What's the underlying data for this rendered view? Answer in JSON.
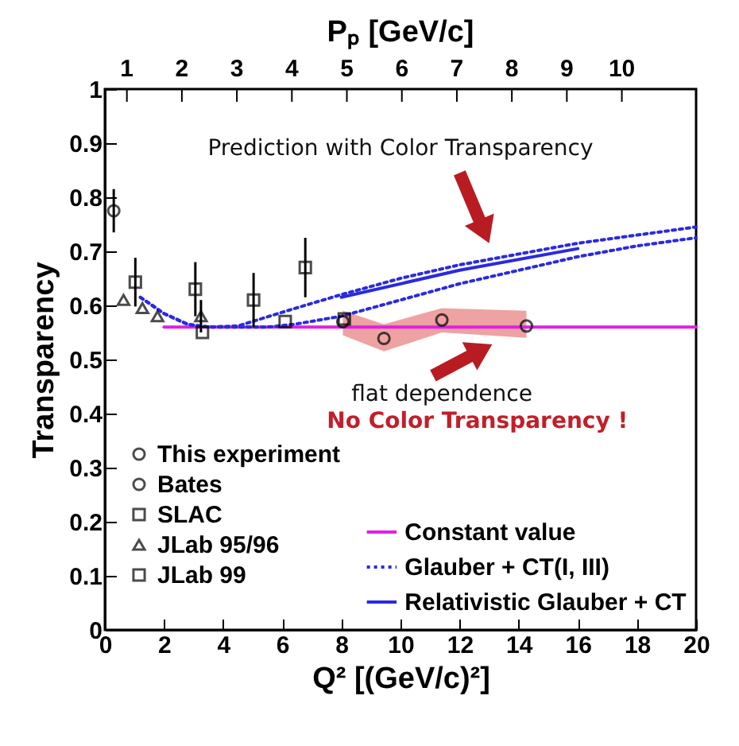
{
  "chart_data": {
    "type": "scatter",
    "xlabel": "Q² [(GeV/c)²]",
    "ylabel": "Transparency",
    "x2label": "Pₚ [GeV/c]",
    "xlim": [
      0,
      20
    ],
    "xticks": [
      0,
      2,
      4,
      6,
      8,
      10,
      12,
      14,
      16,
      18,
      20
    ],
    "ylim": [
      0,
      1
    ],
    "yticks": [
      0,
      0.1,
      0.2,
      0.3,
      0.4,
      0.5,
      0.6,
      0.7,
      0.8,
      0.9,
      1
    ],
    "x2lim": [
      0.6,
      11.35
    ],
    "x2ticks": [
      1,
      2,
      3,
      4,
      5,
      6,
      7,
      8,
      9,
      10
    ],
    "legend": "bottom",
    "series": [
      {
        "name": "This experiment",
        "marker": "circle",
        "color": "#000000",
        "x": [
          8.05,
          9.44,
          11.4,
          14.26
        ],
        "values": [
          0.57,
          0.539,
          0.573,
          0.562
        ],
        "lower": [
          0.545,
          0.515,
          0.55,
          0.54
        ],
        "upper": [
          0.59,
          0.565,
          0.595,
          0.59
        ]
      },
      {
        "name": "Bates",
        "marker": "circle",
        "color": "#000000",
        "x": [
          0.3
        ],
        "values": [
          0.775
        ],
        "errors": [
          0.04
        ]
      },
      {
        "name": "SLAC",
        "marker": "square",
        "color": "#000000",
        "x": [
          1.03,
          3.06,
          5.03,
          6.78
        ],
        "values": [
          0.643,
          0.63,
          0.61,
          0.67
        ],
        "errors": [
          0.045,
          0.05,
          0.05,
          0.055
        ]
      },
      {
        "name": "JLab 95/96",
        "marker": "triangle",
        "color": "#000000",
        "x": [
          0.63,
          1.27,
          1.78,
          3.25
        ],
        "values": [
          0.61,
          0.595,
          0.58,
          0.58
        ],
        "errors": [
          null,
          null,
          null,
          0.03
        ]
      },
      {
        "name": "JLab 99",
        "marker": "square",
        "color": "#000000",
        "x": [
          3.3,
          6.1,
          8.1
        ],
        "values": [
          0.55,
          0.57,
          0.575
        ]
      },
      {
        "name": "Constant value",
        "type": "line",
        "line_style": "solid",
        "color": "#e020e0",
        "x": [
          2.0,
          20
        ],
        "values": [
          0.56,
          0.56
        ]
      },
      {
        "name": "Glauber + CT(I, III)",
        "type": "line",
        "line_style": "dotted",
        "color": "#2a2ae0",
        "x": [
          1.2,
          2.0,
          2.8,
          3.5,
          4.5,
          6.4,
          8,
          10,
          12,
          14,
          16,
          18,
          20
        ],
        "values": [
          0.615,
          0.585,
          0.565,
          0.56,
          0.562,
          0.594,
          0.62,
          0.65,
          0.675,
          0.695,
          0.715,
          0.73,
          0.745
        ]
      },
      {
        "type": "line",
        "line_style": "dotted",
        "color": "#2a2ae0",
        "x": [
          1.2,
          2.0,
          2.8,
          3.5,
          4.5,
          5.5,
          6.4,
          8,
          10,
          12,
          14,
          16,
          18,
          20
        ],
        "values": [
          0.615,
          0.585,
          0.565,
          0.56,
          0.56,
          0.56,
          0.565,
          0.58,
          0.61,
          0.64,
          0.665,
          0.69,
          0.71,
          0.725
        ]
      },
      {
        "name": "Relativistic Glauber + CT",
        "type": "line",
        "line_style": "solid",
        "color": "#2a2ae0",
        "x": [
          8,
          12,
          16
        ],
        "values": [
          0.615,
          0.665,
          0.705
        ]
      }
    ],
    "annotations": [
      "Prediction with Color Transparency",
      "flat dependence",
      "No Color Transparency !"
    ]
  }
}
